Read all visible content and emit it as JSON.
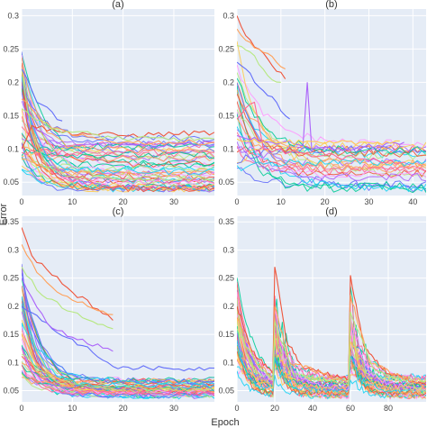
{
  "figure": {
    "xlabel": "Epoch",
    "ylabel": "Error"
  },
  "colors": {
    "plot_bg": "#E5ECF6",
    "grid": "#FFFFFF",
    "palette": [
      "#636EFA",
      "#EF553B",
      "#00CC96",
      "#AB63FA",
      "#FFA15A",
      "#19D3F3",
      "#FF6692",
      "#B6E880",
      "#FF97FF",
      "#FECB52"
    ]
  },
  "chart_data": [
    {
      "type": "line",
      "title": "(a)",
      "xlim": [
        0,
        38
      ],
      "ylim": [
        0.03,
        0.31
      ],
      "xticks": [
        0,
        10,
        20,
        30
      ],
      "yticks": [
        0.05,
        0.1,
        0.15,
        0.2,
        0.25,
        0.3
      ],
      "series_count": 48,
      "start_range": [
        0.07,
        0.26
      ],
      "end_range": [
        0.04,
        0.125
      ],
      "decay_rate": 0.33,
      "noise": 0.005,
      "series": [
        {
          "x_end": 38,
          "points": [
            [
              0,
              0.1
            ],
            [
              2,
              0.135
            ],
            [
              8,
              0.125
            ],
            [
              20,
              0.12
            ],
            [
              38,
              0.125
            ]
          ]
        },
        {
          "x_end": 38,
          "points": [
            [
              0,
              0.175
            ],
            [
              4,
              0.14
            ],
            [
              10,
              0.12
            ],
            [
              20,
              0.11
            ],
            [
              38,
              0.11
            ]
          ]
        },
        {
          "x_end": 38,
          "points": [
            [
              0,
              0.16
            ],
            [
              6,
              0.13
            ],
            [
              20,
              0.115
            ],
            [
              38,
              0.115
            ]
          ]
        },
        {
          "x_end": 8,
          "points": [
            [
              0,
              0.22
            ],
            [
              3,
              0.17
            ],
            [
              8,
              0.142
            ]
          ]
        }
      ]
    },
    {
      "type": "line",
      "title": "(b)",
      "xlim": [
        0,
        43
      ],
      "ylim": [
        0.03,
        0.31
      ],
      "xticks": [
        0,
        10,
        20,
        30,
        40
      ],
      "yticks": [
        0.05,
        0.1,
        0.15,
        0.2,
        0.25,
        0.3
      ],
      "series_count": 26,
      "start_range": [
        0.07,
        0.3
      ],
      "end_range": [
        0.04,
        0.115
      ],
      "decay_rate": 0.2,
      "noise": 0.006,
      "series": [
        {
          "x_end": 11,
          "points": [
            [
              0,
              0.3
            ],
            [
              2,
              0.27
            ],
            [
              5,
              0.25
            ],
            [
              8,
              0.225
            ],
            [
              11,
              0.205
            ]
          ]
        },
        {
          "x_end": 11,
          "points": [
            [
              0,
              0.28
            ],
            [
              3,
              0.26
            ],
            [
              6,
              0.245
            ],
            [
              9,
              0.23
            ],
            [
              11,
              0.22
            ]
          ]
        },
        {
          "x_end": 10,
          "points": [
            [
              0,
              0.255
            ],
            [
              4,
              0.24
            ],
            [
              7,
              0.21
            ],
            [
              10,
              0.2
            ]
          ]
        },
        {
          "x_end": 18,
          "points": [
            [
              0,
              0.23
            ],
            [
              2,
              0.22
            ],
            [
              4,
              0.2
            ],
            [
              7,
              0.18
            ],
            [
              9,
              0.17
            ],
            [
              11,
              0.15
            ],
            [
              12,
              0.145
            ]
          ]
        },
        {
          "x_end": 38,
          "points": [
            [
              0,
              0.12
            ],
            [
              8,
              0.11
            ],
            [
              15,
              0.105
            ],
            [
              16,
              0.2
            ],
            [
              17,
              0.1
            ],
            [
              25,
              0.1
            ],
            [
              38,
              0.11
            ]
          ]
        },
        {
          "x_end": 38,
          "points": [
            [
              0,
              0.145
            ],
            [
              4,
              0.17
            ],
            [
              6,
              0.1
            ],
            [
              12,
              0.095
            ],
            [
              20,
              0.09
            ],
            [
              28,
              0.085
            ],
            [
              38,
              0.08
            ]
          ]
        },
        {
          "x_end": 43,
          "points": [
            [
              0,
              0.115
            ],
            [
              10,
              0.11
            ],
            [
              20,
              0.108
            ],
            [
              32,
              0.11
            ],
            [
              37,
              0.112
            ]
          ]
        }
      ]
    },
    {
      "type": "line",
      "title": "(c)",
      "xlim": [
        0,
        38
      ],
      "ylim": [
        0.03,
        0.36
      ],
      "xticks": [
        0,
        10,
        20,
        30
      ],
      "yticks": [
        0.05,
        0.1,
        0.15,
        0.2,
        0.25,
        0.3,
        0.35
      ],
      "series_count": 48,
      "start_range": [
        0.07,
        0.28
      ],
      "end_range": [
        0.04,
        0.07
      ],
      "decay_rate": 0.28,
      "noise": 0.005,
      "series": [
        {
          "x_end": 18,
          "points": [
            [
              0,
              0.34
            ],
            [
              2,
              0.29
            ],
            [
              5,
              0.265
            ],
            [
              10,
              0.225
            ],
            [
              15,
              0.195
            ],
            [
              18,
              0.175
            ]
          ]
        },
        {
          "x_end": 18,
          "points": [
            [
              0,
              0.31
            ],
            [
              3,
              0.26
            ],
            [
              8,
              0.22
            ],
            [
              13,
              0.2
            ],
            [
              18,
              0.185
            ]
          ]
        },
        {
          "x_end": 18,
          "points": [
            [
              0,
              0.27
            ],
            [
              4,
              0.22
            ],
            [
              10,
              0.19
            ],
            [
              18,
              0.16
            ]
          ]
        },
        {
          "x_end": 38,
          "points": [
            [
              0,
              0.2
            ],
            [
              6,
              0.16
            ],
            [
              12,
              0.13
            ],
            [
              17,
              0.1
            ],
            [
              18,
              0.093
            ],
            [
              25,
              0.09
            ],
            [
              30,
              0.088
            ],
            [
              38,
              0.09
            ]
          ]
        },
        {
          "x_end": 18,
          "points": [
            [
              0,
              0.25
            ],
            [
              5,
              0.17
            ],
            [
              10,
              0.145
            ],
            [
              18,
              0.12
            ]
          ]
        }
      ]
    },
    {
      "type": "line",
      "title": "(d)",
      "xlim": [
        0,
        100
      ],
      "ylim": [
        0.03,
        0.36
      ],
      "xticks": [
        0,
        20,
        40,
        60,
        80
      ],
      "yticks": [
        0.05,
        0.1,
        0.15,
        0.2,
        0.25,
        0.3,
        0.35
      ],
      "series_count": 40,
      "start_range": [
        0.08,
        0.27
      ],
      "end_range": [
        0.04,
        0.075
      ],
      "decay_rate": 0.18,
      "noise": 0.005,
      "restarts": [
        20,
        60
      ],
      "series": [
        {
          "x_end": 100,
          "points": [
            [
              0,
              0.2
            ],
            [
              8,
              0.12
            ],
            [
              19,
              0.08
            ],
            [
              20,
              0.27
            ],
            [
              26,
              0.14
            ],
            [
              35,
              0.09
            ],
            [
              59,
              0.07
            ],
            [
              60,
              0.255
            ],
            [
              67,
              0.13
            ],
            [
              80,
              0.08
            ],
            [
              100,
              0.06
            ]
          ]
        },
        {
          "x_end": 100,
          "points": [
            [
              0,
              0.18
            ],
            [
              10,
              0.1
            ],
            [
              19,
              0.075
            ],
            [
              20,
              0.2
            ],
            [
              28,
              0.1
            ],
            [
              59,
              0.065
            ],
            [
              60,
              0.22
            ],
            [
              70,
              0.1
            ],
            [
              100,
              0.055
            ]
          ]
        },
        {
          "x_end": 100,
          "points": [
            [
              0,
              0.16
            ],
            [
              12,
              0.09
            ],
            [
              19,
              0.07
            ],
            [
              20,
              0.17
            ],
            [
              30,
              0.08
            ],
            [
              59,
              0.06
            ],
            [
              60,
              0.19
            ],
            [
              72,
              0.09
            ],
            [
              100,
              0.05
            ]
          ]
        }
      ]
    }
  ]
}
